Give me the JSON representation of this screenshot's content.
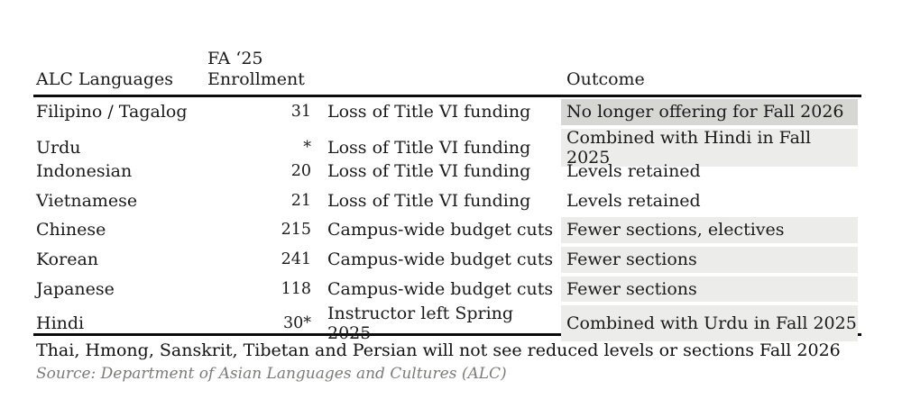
{
  "chart_data": {
    "type": "table",
    "headers": {
      "languages": "ALC Languages",
      "enrollment": "FA ‘25\nEnrollment",
      "reason": "",
      "outcome": "Outcome"
    },
    "rows": [
      {
        "language": "Filipino / Tagalog",
        "enrollment": "31",
        "reason": "Loss of Title VI funding",
        "outcome": "No longer offering for Fall 2026",
        "highlight": "dark"
      },
      {
        "language": "Urdu",
        "enrollment": "*",
        "reason": "Loss of Title VI funding",
        "outcome": "Combined with Hindi in Fall 2025",
        "highlight": "light"
      },
      {
        "language": "Indonesian",
        "enrollment": "20",
        "reason": "Loss of Title VI funding",
        "outcome": "Levels retained",
        "highlight": "none"
      },
      {
        "language": "Vietnamese",
        "enrollment": "21",
        "reason": "Loss of Title VI funding",
        "outcome": "Levels retained",
        "highlight": "none"
      },
      {
        "language": "Chinese",
        "enrollment": "215",
        "reason": "Campus-wide budget cuts",
        "outcome": "Fewer sections, electives",
        "highlight": "light"
      },
      {
        "language": "Korean",
        "enrollment": "241",
        "reason": "Campus-wide budget cuts",
        "outcome": "Fewer sections",
        "highlight": "light"
      },
      {
        "language": "Japanese",
        "enrollment": "118",
        "reason": "Campus-wide budget cuts",
        "outcome": "Fewer sections",
        "highlight": "light"
      },
      {
        "language": "Hindi",
        "enrollment": "30*",
        "reason": "Instructor left Spring 2025",
        "outcome": "Combined with Urdu in Fall 2025",
        "highlight": "light"
      }
    ],
    "footnote": "Thai, Hmong, Sanskrit, Tibetan and Persian will not see reduced levels or sections Fall 2026",
    "source": "Source: Department of Asian Languages and Cultures (ALC)"
  },
  "colors": {
    "highlight_dark": "#d6d6d3",
    "highlight_light": "#ececea",
    "rule": "#0b0b0b",
    "source_text": "#7b7b79"
  }
}
